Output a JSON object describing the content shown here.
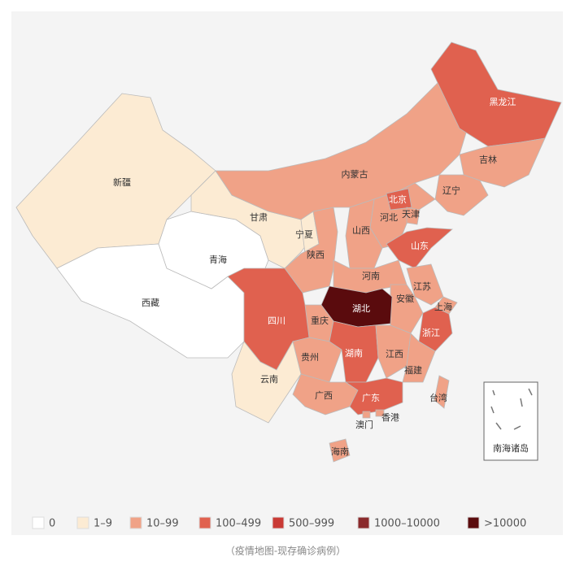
{
  "map": {
    "regions": [
      {
        "name": "新疆",
        "bin": 1
      },
      {
        "name": "西藏",
        "bin": 0
      },
      {
        "name": "青海",
        "bin": 0
      },
      {
        "name": "甘肃",
        "bin": 1
      },
      {
        "name": "宁夏",
        "bin": 1
      },
      {
        "name": "陕西",
        "bin": 2
      },
      {
        "name": "内蒙古",
        "bin": 2
      },
      {
        "name": "黑龙江",
        "bin": 3
      },
      {
        "name": "吉林",
        "bin": 2
      },
      {
        "name": "辽宁",
        "bin": 2
      },
      {
        "name": "河北",
        "bin": 2
      },
      {
        "name": "北京",
        "bin": 3
      },
      {
        "name": "天津",
        "bin": 2
      },
      {
        "name": "山西",
        "bin": 2
      },
      {
        "name": "山东",
        "bin": 3
      },
      {
        "name": "河南",
        "bin": 2
      },
      {
        "name": "江苏",
        "bin": 2
      },
      {
        "name": "安徽",
        "bin": 2
      },
      {
        "name": "上海",
        "bin": 2
      },
      {
        "name": "浙江",
        "bin": 3
      },
      {
        "name": "湖北",
        "bin": 6
      },
      {
        "name": "重庆",
        "bin": 2
      },
      {
        "name": "四川",
        "bin": 3
      },
      {
        "name": "贵州",
        "bin": 2
      },
      {
        "name": "云南",
        "bin": 1
      },
      {
        "name": "湖南",
        "bin": 3
      },
      {
        "name": "江西",
        "bin": 2
      },
      {
        "name": "福建",
        "bin": 2
      },
      {
        "name": "广西",
        "bin": 2
      },
      {
        "name": "广东",
        "bin": 3
      },
      {
        "name": "香港",
        "bin": 2
      },
      {
        "name": "澳门",
        "bin": 2
      },
      {
        "name": "海南",
        "bin": 2
      },
      {
        "name": "台湾",
        "bin": 2
      }
    ],
    "legend": [
      {
        "label": "0",
        "color": "#ffffff"
      },
      {
        "label": "1–9",
        "color": "#fcebd3"
      },
      {
        "label": "10–99",
        "color": "#f0a287"
      },
      {
        "label": "100–499",
        "color": "#e0614f"
      },
      {
        "label": "500–999",
        "color": "#c93a35"
      },
      {
        "label": "1000–10000",
        "color": "#8a2a2c"
      },
      {
        "label": ">10000",
        "color": "#5a0b0d"
      }
    ],
    "inset_label": "南海诸岛"
  },
  "caption": "（疫情地图-现存确诊病例）"
}
